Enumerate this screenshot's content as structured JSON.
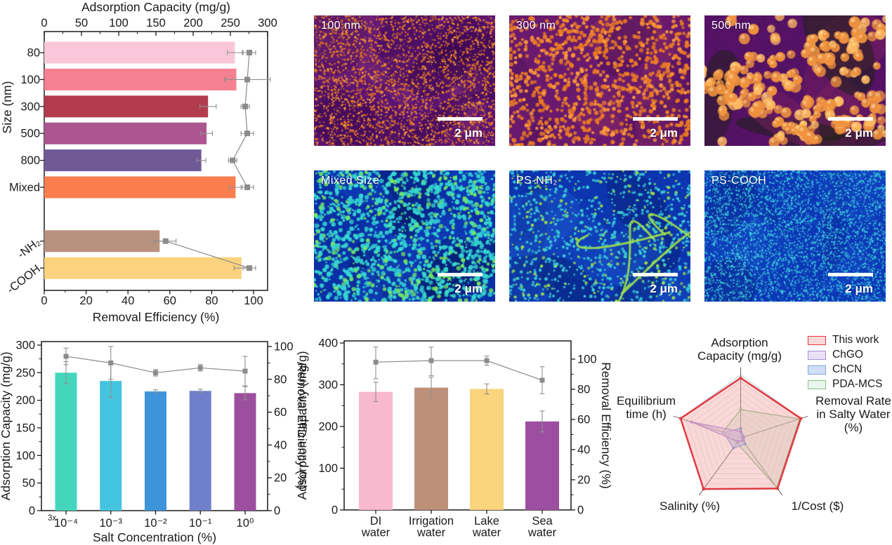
{
  "figure": {
    "background": "#ffffff",
    "text_color": "#1a1a1a",
    "marker_color": "#8c8c8c",
    "error_bar_color": "#8f8f8f"
  },
  "sem": {
    "items": [
      {
        "label": "100 nm",
        "scale_bar": "2 μm",
        "style": "orange_fine"
      },
      {
        "label": "300 nm",
        "scale_bar": "2 μm",
        "style": "orange_medium"
      },
      {
        "label": "500 nm",
        "scale_bar": "2 μm",
        "style": "orange_large"
      },
      {
        "label": "Mixed Size",
        "scale_bar": "2 μm",
        "style": "blue_mixed"
      },
      {
        "label": "PS-NH₂",
        "scale_bar": "2 μm",
        "style": "blue_streaks"
      },
      {
        "label": "PS-COOH",
        "scale_bar": "2 μm",
        "style": "blue_dense"
      }
    ],
    "styles": {
      "orange_fine": {
        "bg": "#5c1472",
        "bg2": "#7a2a7a",
        "shadow": "#38064e",
        "dot": "#e87a22",
        "dot2": "#ffa63e",
        "dot_r": [
          0.7,
          1.7
        ],
        "count": 2800,
        "patches": 16
      },
      "orange_medium": {
        "bg": "#6a1a6e",
        "bg2": "#8a2f62",
        "shadow": "#470e58",
        "dot": "#ec7c24",
        "dot2": "#ff9b3c",
        "dot_r": [
          2.0,
          3.2
        ],
        "count": 950,
        "patches": 10
      },
      "orange_large": {
        "bg": "#551266",
        "bg2": "#7a2060",
        "shadow": "#16230d",
        "dot": "#f0923e",
        "dot2": "#ffb85f",
        "dot_r": [
          5.0,
          8.5
        ],
        "count": 250,
        "patches": 12,
        "cluster": true
      },
      "blue_mixed": {
        "bg": "#0b2fa6",
        "bg2": "#1548cc",
        "shadow": "#041a60",
        "dot": "#35d8d2",
        "dot2": "#74e866",
        "dot_r": [
          1.1,
          3.4
        ],
        "count": 1600,
        "patches": 12
      },
      "blue_streaks": {
        "bg": "#0d35b0",
        "bg2": "#1d55cc",
        "shadow": "#062070",
        "dot": "#3ad0d8",
        "dot2": "#9ce050",
        "dot_r": [
          1.1,
          2.5
        ],
        "count": 950,
        "patches": 12,
        "streaks": 4
      },
      "blue_dense": {
        "bg": "#0c38b8",
        "bg2": "#1750cc",
        "shadow": "#0a2a8e",
        "dot": "#38d4dc",
        "dot2": "#55dce2",
        "dot_r": [
          0.6,
          1.3
        ],
        "count": 4200,
        "patches": 8
      }
    }
  },
  "chart_data": [
    {
      "id": "size_effect",
      "type": "bar",
      "orientation": "horizontal",
      "top_axis": {
        "label": "Adsorption Capacity (mg/g)",
        "range": [
          0,
          300
        ],
        "ticks": [
          0,
          50,
          100,
          150,
          200,
          250,
          300
        ]
      },
      "bottom_axis": {
        "label": "Removal Efficiency (%)",
        "range": [
          0,
          100
        ],
        "ticks": [
          0,
          20,
          40,
          60,
          80,
          100
        ]
      },
      "ylabel": "Size (nm)",
      "categories": [
        "80",
        "100",
        "300",
        "500",
        "800",
        "Mixed",
        "-NH₂",
        "-COOH"
      ],
      "rotated_category_count": 2,
      "gap_after_index": 5,
      "bars": {
        "name": "Adsorption Capacity (mg/g)",
        "values": [
          256,
          258,
          220,
          218,
          211,
          257,
          155,
          265
        ],
        "errors": [
          10,
          15,
          11,
          8,
          6,
          9,
          8,
          10
        ],
        "colors": [
          "#f9c7d9",
          "#f5808f",
          "#b23c4c",
          "#ac5590",
          "#6f5a96",
          "#fa7d4e",
          "#b9917f",
          "#fbd27d"
        ]
      },
      "line": {
        "name": "Removal Efficiency (%)",
        "values": [
          98,
          97,
          96,
          97,
          90,
          97,
          58,
          98
        ],
        "errors": [
          3,
          11,
          2,
          3,
          2,
          3,
          5,
          3
        ],
        "segments": [
          [
            0,
            5
          ],
          [
            6,
            7
          ]
        ]
      }
    },
    {
      "id": "salt_effect",
      "type": "bar",
      "xlabel": "Salt Concentration (%)",
      "corner_note": "3x",
      "categories": [
        "10⁻⁴",
        "10⁻³",
        "10⁻²",
        "10⁻¹",
        "10⁰"
      ],
      "left_axis": {
        "label": "Adsorption Capacity (mg/g)",
        "range": [
          0,
          300
        ],
        "ticks": [
          0,
          50,
          100,
          150,
          200,
          250,
          300
        ]
      },
      "right_axis": {
        "label": "Removal Efficiency (%)",
        "range": [
          0,
          100
        ],
        "ticks": [
          0,
          20,
          40,
          60,
          80,
          100
        ]
      },
      "bars": {
        "values": [
          250,
          235,
          216,
          217,
          213
        ],
        "errors": [
          20,
          30,
          3,
          3,
          12
        ],
        "colors": [
          "#43d6bc",
          "#45c4e0",
          "#3e94da",
          "#6f7fca",
          "#9c4f9f"
        ]
      },
      "line": {
        "values": [
          94,
          90,
          84,
          87,
          85
        ],
        "errors": [
          5,
          10,
          2,
          2,
          9
        ]
      }
    },
    {
      "id": "water_matrix",
      "type": "bar",
      "xlabel": "",
      "categories": [
        "DI water",
        "Irrigation water",
        "Lake water",
        "Sea water"
      ],
      "left_axis": {
        "label": "Adsorption Capacity (mg/g)",
        "range": [
          0,
          400
        ],
        "ticks": [
          0,
          100,
          200,
          300,
          400
        ]
      },
      "right_axis": {
        "label": "Removal Efficiency (%)",
        "range": [
          0,
          100
        ],
        "ticks": [
          0,
          20,
          40,
          60,
          80,
          100
        ]
      },
      "bars": {
        "values": [
          283,
          293,
          290,
          212
        ],
        "errors": [
          23,
          25,
          12,
          25
        ],
        "colors": [
          "#f8b9ce",
          "#bd9179",
          "#fbd47e",
          "#9c4fa0"
        ]
      },
      "line": {
        "values": [
          98,
          99,
          99,
          86
        ],
        "errors": [
          11,
          10,
          3,
          9
        ]
      }
    },
    {
      "id": "comparison_radar",
      "type": "radar",
      "grid_levels": 10,
      "axes": [
        {
          "label_lines": [
            "Adsorption",
            "Capacity (mg/g)"
          ]
        },
        {
          "label_lines": [
            "Removal Rate",
            "in Salty Water",
            "(%)"
          ]
        },
        {
          "label_lines": [
            "1/Cost ($)"
          ]
        },
        {
          "label_lines": [
            "Salinity (%)"
          ]
        },
        {
          "label_lines": [
            "Equilibrium",
            "time (h)"
          ]
        }
      ],
      "series": [
        {
          "name": "This work",
          "stroke": "#e03a40",
          "fill": "rgba(243,153,153,0.38)",
          "values": [
            0.95,
            1.0,
            0.99,
            1.0,
            1.0
          ]
        },
        {
          "name": "ChGO",
          "stroke": "#a98fd8",
          "fill": "rgba(215,199,241,0.55)",
          "values": [
            0.1,
            0.03,
            0.05,
            0.07,
            0.82
          ]
        },
        {
          "name": "ChCN",
          "stroke": "#7da2de",
          "fill": "rgba(178,201,241,0.60)",
          "values": [
            0.15,
            0.05,
            0.12,
            0.2,
            0.28
          ]
        },
        {
          "name": "PDA-MCS",
          "stroke": "#8cc08c",
          "fill": "rgba(194,231,202,0.38)",
          "values": [
            0.45,
            0.98,
            0.97,
            0.1,
            0.3
          ]
        }
      ]
    }
  ]
}
